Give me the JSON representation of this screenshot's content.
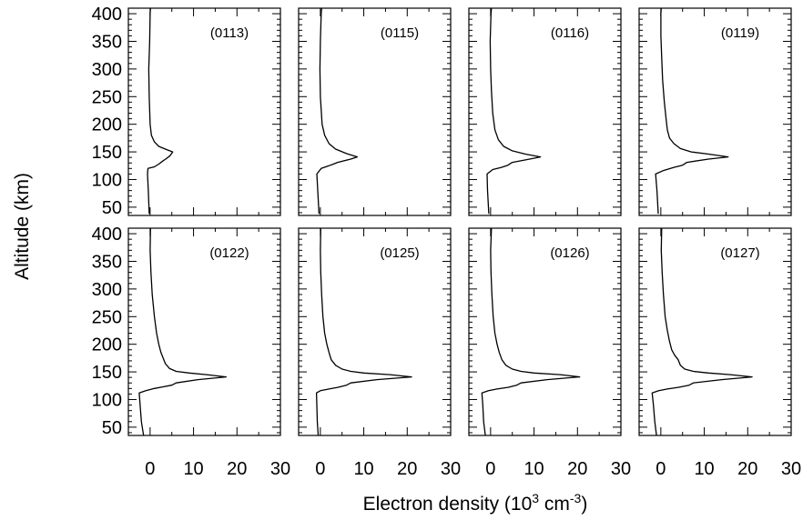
{
  "chart_data": {
    "type": "line",
    "layout": "2x4 small multiples",
    "xlabel_main": "Electron density (10",
    "xlabel_sup1": "3",
    "xlabel_mid": " cm",
    "xlabel_sup2": "-3",
    "xlabel_end": ")",
    "ylabel": "Altitude (km)",
    "xlim": [
      -5,
      30
    ],
    "ylim": [
      35,
      410
    ],
    "x_ticks": [
      "0",
      "10",
      "20",
      "30"
    ],
    "x_tick_values": [
      0,
      10,
      20,
      30
    ],
    "y_ticks": [
      "400",
      "350",
      "300",
      "250",
      "200",
      "150",
      "100",
      "50"
    ],
    "y_tick_values": [
      400,
      350,
      300,
      250,
      200,
      150,
      100,
      50
    ],
    "grid": false,
    "panels": [
      {
        "label": "(0113)",
        "points": [
          [
            -0.2,
            38
          ],
          [
            -0.4,
            80
          ],
          [
            -0.6,
            110
          ],
          [
            -0.5,
            120
          ],
          [
            1.0,
            123
          ],
          [
            2.0,
            128
          ],
          [
            3.0,
            134
          ],
          [
            3.6,
            137
          ],
          [
            4.6,
            143
          ],
          [
            5.2,
            150
          ],
          [
            3.5,
            155
          ],
          [
            2.0,
            160
          ],
          [
            1.0,
            168
          ],
          [
            0.3,
            180
          ],
          [
            0.0,
            200
          ],
          [
            -0.2,
            250
          ],
          [
            -0.3,
            300
          ],
          [
            -0.1,
            350
          ],
          [
            0.0,
            400
          ],
          [
            0.1,
            410
          ]
        ]
      },
      {
        "label": "(0115)",
        "points": [
          [
            -0.3,
            38
          ],
          [
            -0.6,
            80
          ],
          [
            -0.8,
            110
          ],
          [
            0.2,
            120
          ],
          [
            2.0,
            125
          ],
          [
            3.0,
            128
          ],
          [
            4.0,
            131
          ],
          [
            7.0,
            137
          ],
          [
            8.5,
            141
          ],
          [
            6.0,
            147
          ],
          [
            3.5,
            155
          ],
          [
            2.0,
            165
          ],
          [
            1.0,
            180
          ],
          [
            0.4,
            200
          ],
          [
            0.0,
            250
          ],
          [
            -0.1,
            300
          ],
          [
            0.0,
            350
          ],
          [
            0.2,
            400
          ],
          [
            0.3,
            410
          ]
        ]
      },
      {
        "label": "(0116)",
        "points": [
          [
            -0.4,
            38
          ],
          [
            -0.7,
            80
          ],
          [
            -0.8,
            110
          ],
          [
            0.5,
            118
          ],
          [
            2.5,
            122
          ],
          [
            4.0,
            126
          ],
          [
            5.0,
            131
          ],
          [
            9.0,
            137
          ],
          [
            11.5,
            141
          ],
          [
            8.0,
            146
          ],
          [
            5.0,
            152
          ],
          [
            3.0,
            160
          ],
          [
            1.8,
            172
          ],
          [
            1.0,
            190
          ],
          [
            0.5,
            220
          ],
          [
            0.2,
            260
          ],
          [
            0.0,
            300
          ],
          [
            -0.1,
            350
          ],
          [
            0.1,
            400
          ],
          [
            0.2,
            410
          ]
        ]
      },
      {
        "label": "(0119)",
        "points": [
          [
            -0.6,
            38
          ],
          [
            -0.9,
            80
          ],
          [
            -1.2,
            110
          ],
          [
            0.5,
            116
          ],
          [
            3.0,
            122
          ],
          [
            5.0,
            126
          ],
          [
            6.0,
            131
          ],
          [
            11.0,
            137
          ],
          [
            15.5,
            141
          ],
          [
            11.0,
            146
          ],
          [
            7.0,
            150
          ],
          [
            4.5,
            156
          ],
          [
            3.0,
            165
          ],
          [
            2.0,
            175
          ],
          [
            1.5,
            190
          ],
          [
            1.2,
            210
          ],
          [
            0.8,
            240
          ],
          [
            0.4,
            280
          ],
          [
            0.2,
            320
          ],
          [
            0.0,
            360
          ],
          [
            0.0,
            400
          ],
          [
            0.1,
            410
          ]
        ]
      },
      {
        "label": "(0122)",
        "points": [
          [
            -1.5,
            35
          ],
          [
            -2.0,
            60
          ],
          [
            -2.3,
            90
          ],
          [
            -2.5,
            112
          ],
          [
            -1.0,
            116
          ],
          [
            1.0,
            120
          ],
          [
            3.0,
            123
          ],
          [
            5.0,
            126
          ],
          [
            6.0,
            130
          ],
          [
            11.0,
            136
          ],
          [
            17.5,
            141
          ],
          [
            13.0,
            145
          ],
          [
            9.0,
            148
          ],
          [
            6.0,
            151
          ],
          [
            4.5,
            156
          ],
          [
            3.5,
            165
          ],
          [
            3.0,
            175
          ],
          [
            2.5,
            185
          ],
          [
            2.0,
            200
          ],
          [
            1.5,
            220
          ],
          [
            1.0,
            250
          ],
          [
            0.5,
            290
          ],
          [
            0.2,
            330
          ],
          [
            0.0,
            370
          ],
          [
            0.1,
            410
          ]
        ]
      },
      {
        "label": "(0125)",
        "points": [
          [
            -0.5,
            35
          ],
          [
            -0.7,
            60
          ],
          [
            -0.8,
            90
          ],
          [
            -0.9,
            112
          ],
          [
            0.0,
            116
          ],
          [
            2.0,
            119
          ],
          [
            4.0,
            122
          ],
          [
            6.0,
            126
          ],
          [
            7.0,
            130
          ],
          [
            13.0,
            136
          ],
          [
            21.0,
            141
          ],
          [
            16.0,
            145
          ],
          [
            10.0,
            148
          ],
          [
            7.0,
            151
          ],
          [
            5.0,
            155
          ],
          [
            3.5,
            162
          ],
          [
            2.5,
            172
          ],
          [
            2.0,
            185
          ],
          [
            1.5,
            200
          ],
          [
            1.0,
            220
          ],
          [
            0.6,
            250
          ],
          [
            0.3,
            290
          ],
          [
            0.1,
            330
          ],
          [
            0.0,
            370
          ],
          [
            0.1,
            410
          ]
        ]
      },
      {
        "label": "(0126)",
        "points": [
          [
            -1.2,
            35
          ],
          [
            -1.6,
            60
          ],
          [
            -1.8,
            90
          ],
          [
            -2.0,
            112
          ],
          [
            -0.5,
            116
          ],
          [
            1.5,
            119
          ],
          [
            4.0,
            122
          ],
          [
            6.0,
            126
          ],
          [
            7.0,
            130
          ],
          [
            13.0,
            136
          ],
          [
            20.5,
            141
          ],
          [
            16.0,
            145
          ],
          [
            10.0,
            148
          ],
          [
            7.0,
            151
          ],
          [
            5.0,
            155
          ],
          [
            3.5,
            162
          ],
          [
            2.6,
            172
          ],
          [
            2.0,
            185
          ],
          [
            1.5,
            200
          ],
          [
            1.0,
            220
          ],
          [
            0.6,
            250
          ],
          [
            0.3,
            290
          ],
          [
            0.1,
            330
          ],
          [
            0.0,
            370
          ],
          [
            0.2,
            410
          ]
        ]
      },
      {
        "label": "(0127)",
        "points": [
          [
            -1.0,
            35
          ],
          [
            -1.4,
            60
          ],
          [
            -1.7,
            90
          ],
          [
            -2.0,
            112
          ],
          [
            -0.5,
            116
          ],
          [
            1.5,
            119
          ],
          [
            4.0,
            122
          ],
          [
            6.5,
            126
          ],
          [
            7.5,
            130
          ],
          [
            14.0,
            136
          ],
          [
            21.0,
            141
          ],
          [
            16.0,
            145
          ],
          [
            11.0,
            148
          ],
          [
            7.5,
            151
          ],
          [
            5.5,
            155
          ],
          [
            4.5,
            162
          ],
          [
            4.0,
            172
          ],
          [
            3.2,
            180
          ],
          [
            2.5,
            190
          ],
          [
            2.0,
            205
          ],
          [
            1.5,
            225
          ],
          [
            1.0,
            250
          ],
          [
            0.6,
            290
          ],
          [
            0.3,
            330
          ],
          [
            0.1,
            370
          ],
          [
            0.2,
            410
          ]
        ]
      }
    ]
  }
}
